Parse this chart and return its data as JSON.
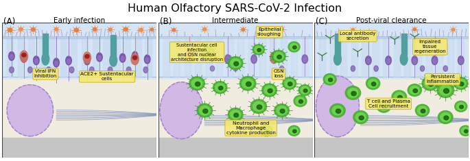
{
  "title": "Human Olfactory SARS-CoV-2 Infection",
  "panels": [
    {
      "label": "(A)",
      "subtitle": "Early infection"
    },
    {
      "label": "(B)",
      "subtitle": "Intermediate"
    },
    {
      "label": "(C)",
      "subtitle": "Post-viral clearance"
    }
  ],
  "label_box_color": "#f5e96e",
  "label_box_edge": "#c8a800",
  "annotation_fontsize": 5.2,
  "title_fontsize": 11.5,
  "subtitle_fontsize": 7.5,
  "panel_label_fontsize": 8.5,
  "bg_top": "#d8e8f8",
  "bg_mid": "#e8f0f8",
  "bg_bot": "#f5f0e0",
  "floor_color": "#c8c8c8",
  "epithelium_line": "#a0b8d8",
  "purple_cell": "#8060b0",
  "purple_light": "#b098d8",
  "teal_cell": "#50a098",
  "red_cell": "#d87060",
  "red_dark": "#c04040",
  "orange_virus": "#e88040",
  "green_cell_outer": "#48b030",
  "green_cell_inner": "#70d850",
  "green_nucleus": "#186010",
  "nerve_line": "#9878c8",
  "axon_color": "#8090c0",
  "glob_fill": "#c8a8e8",
  "glob_edge": "#a080c8"
}
